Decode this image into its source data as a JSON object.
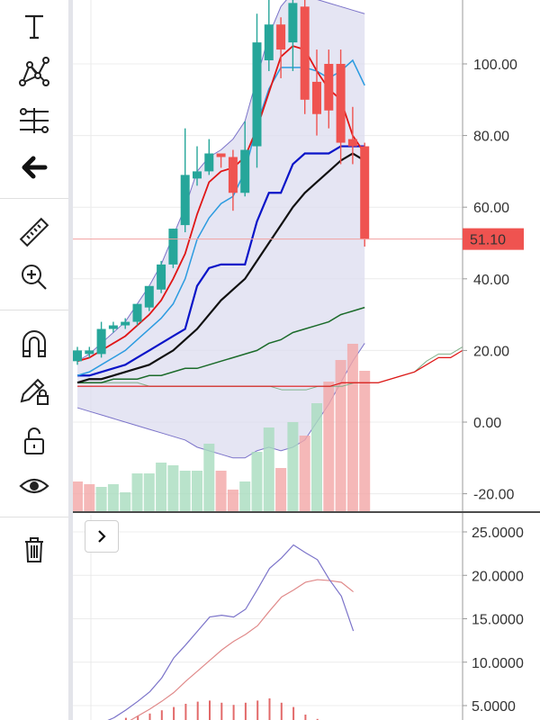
{
  "toolbar": {
    "tools": [
      {
        "name": "text-tool",
        "icon": "text-icon"
      },
      {
        "name": "pattern-tool",
        "icon": "pattern-icon"
      },
      {
        "name": "fib-tool",
        "icon": "fib-icon"
      },
      {
        "name": "back-tool",
        "icon": "arrow-left-icon"
      },
      {
        "name": "measure-tool",
        "icon": "ruler-icon"
      },
      {
        "name": "zoom-tool",
        "icon": "zoom-in-icon"
      },
      {
        "name": "magnet-tool",
        "icon": "magnet-icon"
      },
      {
        "name": "lock-drawing-tool",
        "icon": "pencil-lock-icon"
      },
      {
        "name": "lock-all-tool",
        "icon": "unlock-icon"
      },
      {
        "name": "visibility-tool",
        "icon": "eye-icon"
      },
      {
        "name": "delete-tool",
        "icon": "trash-icon"
      }
    ]
  },
  "colors": {
    "up": "#26a69a",
    "down": "#ef5350",
    "bb_fill": "#dcdcef",
    "ma_red": "#e01616",
    "ma_light_blue": "#2c9be0",
    "ma_blue": "#0a14c8",
    "ma_black": "#111111",
    "ma_green": "#1b6b2a",
    "osc_purple": "#7b73c9",
    "osc_pink": "#e08a8a",
    "current_price_bg": "#ef5350"
  },
  "price_axis": {
    "labels": [
      "100.00",
      "80.00",
      "60.00",
      "40.00",
      "20.00",
      "0.00",
      "-20.00"
    ],
    "min": -25,
    "max": 117,
    "current_price": "51.10"
  },
  "oscillator_axis": {
    "labels": [
      "25.0000",
      "20.0000",
      "15.0000",
      "10.0000",
      "5.0000"
    ],
    "min": 2.0,
    "max": 26.0
  },
  "chart_data": {
    "type": "candlestick",
    "candles": [
      {
        "o": 17,
        "h": 21,
        "l": 16,
        "c": 20,
        "v": 11
      },
      {
        "o": 19,
        "h": 21,
        "l": 18,
        "c": 20,
        "v": 10
      },
      {
        "o": 19,
        "h": 28,
        "l": 18,
        "c": 26,
        "v": 9
      },
      {
        "o": 26,
        "h": 28,
        "l": 25,
        "c": 27,
        "v": 10
      },
      {
        "o": 27,
        "h": 29,
        "l": 26,
        "c": 28,
        "v": 7
      },
      {
        "o": 28,
        "h": 33,
        "l": 27,
        "c": 33,
        "v": 14
      },
      {
        "o": 32,
        "h": 38,
        "l": 31,
        "c": 38,
        "v": 14
      },
      {
        "o": 37,
        "h": 45,
        "l": 36,
        "c": 44,
        "v": 18
      },
      {
        "o": 44,
        "h": 54,
        "l": 43,
        "c": 54,
        "v": 17
      },
      {
        "o": 55,
        "h": 82,
        "l": 53,
        "c": 69,
        "v": 15
      },
      {
        "o": 68,
        "h": 77,
        "l": 66,
        "c": 70,
        "v": 15
      },
      {
        "o": 70,
        "h": 79,
        "l": 69,
        "c": 75,
        "v": 25
      },
      {
        "o": 75,
        "h": 74,
        "l": 71,
        "c": 74,
        "v": 15
      },
      {
        "o": 74,
        "h": 76,
        "l": 59,
        "c": 64,
        "v": 8
      },
      {
        "o": 64,
        "h": 84,
        "l": 63,
        "c": 76,
        "v": 11
      },
      {
        "o": 77,
        "h": 114,
        "l": 71,
        "c": 106,
        "v": 22
      },
      {
        "o": 101,
        "h": 118,
        "l": 98,
        "c": 111,
        "v": 31
      },
      {
        "o": 111,
        "h": 113,
        "l": 96,
        "c": 104,
        "v": 16
      },
      {
        "o": 106,
        "h": 118,
        "l": 98,
        "c": 117,
        "v": 33
      },
      {
        "o": 116,
        "h": 120,
        "l": 86,
        "c": 90,
        "v": 28
      },
      {
        "o": 95,
        "h": 104,
        "l": 80,
        "c": 86,
        "v": 40
      },
      {
        "o": 100,
        "h": 104,
        "l": 82,
        "c": 87,
        "v": 48
      },
      {
        "o": 100,
        "h": 104,
        "l": 72,
        "c": 78,
        "v": 56
      },
      {
        "o": 79,
        "h": 88,
        "l": 72,
        "c": 77,
        "v": 62
      },
      {
        "o": 77,
        "h": 78,
        "l": 49,
        "c": 51,
        "v": 52
      }
    ],
    "volume_colors": [
      "down",
      "down",
      "up",
      "up",
      "up",
      "up",
      "up",
      "up",
      "up",
      "up",
      "up",
      "up",
      "down",
      "down",
      "up",
      "up",
      "up",
      "down",
      "up",
      "down",
      "up",
      "down",
      "down",
      "down",
      "down"
    ],
    "ma_red": [
      17,
      18,
      20,
      22,
      24,
      27,
      30,
      34,
      40,
      47,
      58,
      67,
      70,
      71,
      74,
      82,
      92,
      102,
      105,
      104,
      98,
      93,
      90,
      80,
      75
    ],
    "ma_light_blue": [
      13,
      14,
      16,
      18,
      20,
      23,
      26,
      29,
      33,
      40,
      51,
      57,
      61,
      63,
      70,
      83,
      93,
      99,
      99,
      99,
      98,
      96,
      98,
      101,
      94
    ],
    "ma_blue": [
      13,
      13,
      14,
      15,
      16,
      18,
      20,
      22,
      24,
      26,
      38,
      43,
      44,
      44,
      44,
      56,
      64,
      64,
      72,
      75,
      75,
      75,
      77,
      77,
      77
    ],
    "ma_black": [
      11,
      12,
      12,
      13,
      14,
      15,
      16,
      18,
      20,
      23,
      26,
      30,
      34,
      37,
      40,
      45,
      50,
      55,
      60,
      64,
      67,
      70,
      73,
      75,
      73
    ],
    "ma_green": [
      11,
      11,
      11,
      12,
      12,
      12,
      13,
      13,
      14,
      15,
      15,
      16,
      17,
      18,
      19,
      20,
      22,
      23,
      25,
      26,
      27,
      28,
      30,
      31,
      32
    ],
    "bb_upper": [
      17,
      19,
      22,
      25,
      28,
      33,
      38,
      44,
      52,
      60,
      70,
      74,
      76,
      79,
      84,
      96,
      108,
      116,
      120,
      120,
      118,
      117,
      116,
      115,
      114
    ],
    "bb_lower": [
      4,
      3,
      2,
      1,
      0,
      -1,
      -2,
      -3,
      -4,
      -5,
      -7,
      -8,
      -9,
      -10,
      -10,
      -8,
      -7,
      -8,
      -7,
      -5,
      0,
      5,
      11,
      17,
      22
    ],
    "extra_red": [
      10,
      10,
      10,
      10,
      10,
      10,
      10,
      10,
      10,
      10,
      10,
      10,
      10,
      10,
      10,
      10,
      10,
      10,
      10,
      10,
      10,
      10,
      11,
      11,
      11,
      11,
      12,
      13,
      14,
      16,
      18,
      18,
      20
    ],
    "extra_green": [
      11,
      11,
      11,
      11,
      11,
      11,
      10,
      10,
      10,
      10,
      10,
      10,
      10,
      10,
      10,
      10,
      10,
      9,
      9,
      9,
      10,
      10,
      10,
      11,
      11,
      11,
      12,
      13,
      14,
      17,
      19,
      19,
      21
    ],
    "osc_purple": [
      2.5,
      3,
      3.6,
      4.5,
      5.5,
      6.6,
      8.2,
      10.5,
      12.0,
      13.6,
      15.2,
      15.4,
      15.2,
      16.1,
      18.4,
      20.8,
      22.0,
      23.5,
      22.6,
      21.8,
      19.5,
      17.6,
      13.6
    ],
    "osc_pink": [
      1.5,
      2,
      2.5,
      3,
      3.8,
      4.6,
      5.5,
      6.5,
      7.8,
      9.0,
      10.2,
      11.4,
      12.4,
      13.2,
      14.2,
      15.9,
      17.5,
      18.3,
      19.2,
      19.5,
      19.4,
      19.2,
      18.1
    ],
    "osc_hist": [
      0,
      0,
      0,
      0.2,
      0.4,
      0.6,
      0.9,
      1.2,
      1.5,
      1.7,
      1.8,
      1.6,
      1.4,
      1.6,
      1.8,
      2.0,
      1.6,
      1.2,
      0.5,
      0.1,
      0,
      0,
      0
    ]
  }
}
